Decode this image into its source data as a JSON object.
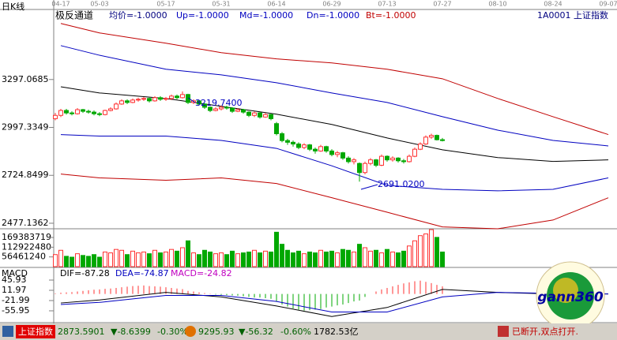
{
  "period_label": "日K线",
  "indicator_name": "极反通道",
  "indicator_labels": [
    {
      "text": "均价=-1.0000",
      "color": "#00007f"
    },
    {
      "text": "Up=-1.0000",
      "color": "#0000c0"
    },
    {
      "text": "Md=-1.0000",
      "color": "#0000c0"
    },
    {
      "text": "Dn=-1.0000",
      "color": "#0000c0"
    },
    {
      "text": "Bt=-1.0000",
      "color": "#c00000"
    }
  ],
  "symbol": "1A0001 上证指数",
  "annotations": [
    "3219.7400",
    "2691.0200"
  ],
  "logo": "gann360",
  "status_bar": {
    "index_name": "上证指数",
    "price": "2873.5901",
    "change": "▼-8.6399",
    "change_pct": "-0.30%",
    "index2": "9295.93",
    "change2": "▼-56.32",
    "change2_pct": "-0.60%",
    "turnover": "1782.53亿",
    "connection": "已断开,双点打开."
  },
  "chart_data": [
    {
      "type": "candlestick",
      "up_color": "#ff3232",
      "down_color": "#00a800",
      "log": true,
      "ylim": [
        2450,
        3790
      ],
      "yticks": [
        2477.1362,
        2724.8499,
        2997.3349,
        3297.0685
      ],
      "xticks": [
        {
          "value": 1,
          "label": "04-17"
        },
        {
          "value": 8,
          "label": "05-03"
        },
        {
          "value": 20,
          "label": "05-17"
        },
        {
          "value": 30,
          "label": "05-31"
        },
        {
          "value": 40,
          "label": "06-14"
        },
        {
          "value": 50,
          "label": "06-29"
        },
        {
          "value": 60,
          "label": "07-13"
        },
        {
          "value": 70,
          "label": "07-27"
        },
        {
          "value": 80,
          "label": "08-10"
        },
        {
          "value": 90,
          "label": "08-24"
        },
        {
          "value": 100,
          "label": "09-07"
        }
      ],
      "open": [
        3050,
        3070,
        3100,
        3085,
        3080,
        3105,
        3095,
        3090,
        3080,
        3075,
        3100,
        3110,
        3140,
        3160,
        3150,
        3165,
        3170,
        3175,
        3160,
        3180,
        3170,
        3175,
        3190,
        3180,
        3200,
        3150,
        3160,
        3140,
        3120,
        3100,
        3110,
        3120,
        3115,
        3095,
        3105,
        3090,
        3070,
        3085,
        3060,
        3075,
        3020,
        2960,
        2920,
        2910,
        2900,
        2880,
        2895,
        2870,
        2860,
        2885,
        2860,
        2840,
        2850,
        2820,
        2800,
        2790,
        2740,
        2790,
        2810,
        2780,
        2830,
        2810,
        2820,
        2805,
        2800,
        2830,
        2870,
        2900,
        2940,
        2950,
        2925
      ],
      "high": [
        3085,
        3110,
        3110,
        3095,
        3115,
        3110,
        3105,
        3100,
        3090,
        3105,
        3120,
        3150,
        3170,
        3170,
        3175,
        3180,
        3185,
        3180,
        3190,
        3190,
        3185,
        3200,
        3200,
        3219.74,
        3205,
        3170,
        3165,
        3145,
        3125,
        3120,
        3130,
        3130,
        3120,
        3115,
        3110,
        3095,
        3095,
        3090,
        3085,
        3080,
        3030,
        2970,
        2930,
        2920,
        2910,
        2905,
        2900,
        2880,
        2895,
        2890,
        2870,
        2860,
        2855,
        2830,
        2820,
        2795,
        2800,
        2820,
        2815,
        2840,
        2835,
        2830,
        2825,
        2815,
        2840,
        2880,
        2910,
        2950,
        2960,
        2955,
        2935
      ],
      "low": [
        3040,
        3060,
        3075,
        3070,
        3075,
        3085,
        3080,
        3070,
        3065,
        3070,
        3095,
        3105,
        3135,
        3140,
        3145,
        3155,
        3160,
        3150,
        3155,
        3160,
        3160,
        3165,
        3170,
        3175,
        3140,
        3140,
        3130,
        3110,
        3090,
        3095,
        3100,
        3105,
        3085,
        3090,
        3080,
        3060,
        3060,
        3050,
        3055,
        3040,
        2950,
        2910,
        2895,
        2885,
        2870,
        2870,
        2860,
        2845,
        2855,
        2850,
        2830,
        2825,
        2810,
        2790,
        2785,
        2691.02,
        2730,
        2780,
        2770,
        2775,
        2800,
        2800,
        2795,
        2790,
        2795,
        2825,
        2865,
        2895,
        2930,
        2920,
        2915
      ],
      "close": [
        3070,
        3100,
        3085,
        3080,
        3105,
        3095,
        3090,
        3080,
        3075,
        3100,
        3110,
        3140,
        3160,
        3150,
        3165,
        3170,
        3175,
        3160,
        3180,
        3170,
        3175,
        3190,
        3180,
        3200,
        3150,
        3160,
        3140,
        3120,
        3100,
        3110,
        3120,
        3115,
        3095,
        3105,
        3090,
        3070,
        3085,
        3060,
        3075,
        3050,
        2960,
        2920,
        2910,
        2900,
        2880,
        2895,
        2870,
        2860,
        2885,
        2860,
        2840,
        2850,
        2820,
        2800,
        2810,
        2740,
        2790,
        2810,
        2780,
        2830,
        2810,
        2820,
        2805,
        2800,
        2830,
        2870,
        2900,
        2940,
        2950,
        2925,
        2920
      ],
      "lines": [
        {
          "color": "#c00000",
          "values": [
            3686,
            3617,
            3544,
            3478,
            3435,
            3408,
            3365,
            3302,
            3175,
            3062,
            2955
          ]
        },
        {
          "color": "#0000c0",
          "values": [
            3527,
            3460,
            3365,
            3328,
            3276,
            3210,
            3150,
            3062,
            2981,
            2921,
            2889
          ]
        },
        {
          "color": "#000000",
          "values": [
            3250,
            3210,
            3175,
            3126,
            3077,
            3015,
            2935,
            2867,
            2823,
            2801,
            2810
          ]
        },
        {
          "color": "#0000c0",
          "values": [
            2955,
            2946,
            2946,
            2921,
            2875,
            2777,
            2671,
            2650,
            2642,
            2650,
            2711
          ]
        },
        {
          "color": "#c00000",
          "values": [
            2732,
            2711,
            2698,
            2711,
            2681,
            2606,
            2532,
            2459,
            2450,
            2493,
            2606
          ]
        }
      ]
    },
    {
      "type": "volume",
      "ylim": [
        0,
        220000000
      ],
      "yticks": [
        56461240,
        112922480,
        169383719
      ],
      "values": [
        70000000,
        95000000,
        60000000,
        55000000,
        75000000,
        65000000,
        60000000,
        70000000,
        55000000,
        85000000,
        80000000,
        100000000,
        95000000,
        70000000,
        90000000,
        80000000,
        85000000,
        75000000,
        95000000,
        80000000,
        85000000,
        100000000,
        90000000,
        110000000,
        150000000,
        80000000,
        70000000,
        95000000,
        85000000,
        75000000,
        80000000,
        70000000,
        90000000,
        75000000,
        80000000,
        85000000,
        95000000,
        80000000,
        90000000,
        85000000,
        200000000,
        130000000,
        95000000,
        80000000,
        90000000,
        75000000,
        85000000,
        80000000,
        95000000,
        85000000,
        90000000,
        80000000,
        100000000,
        95000000,
        85000000,
        130000000,
        110000000,
        90000000,
        95000000,
        80000000,
        100000000,
        85000000,
        80000000,
        90000000,
        120000000,
        150000000,
        180000000,
        190000000,
        215000000,
        170000000,
        85000000
      ]
    },
    {
      "type": "macd",
      "label": "MACD",
      "readouts": [
        "DIF=-87.28",
        "DEA=-74.87",
        "MACD=-24.82"
      ],
      "up_color": "#ff3232",
      "down_color": "#00a800",
      "ylim": [
        -92.6,
        80
      ],
      "yticks": [
        -55.95,
        -21.99,
        11.97,
        45.93
      ],
      "histogram": [
        2,
        4,
        5,
        6,
        8,
        10,
        12,
        14,
        15,
        17,
        18,
        20,
        22,
        24,
        26,
        27,
        28,
        26,
        25,
        24,
        22,
        20,
        18,
        16,
        10,
        8,
        5,
        3,
        1,
        -2,
        -3,
        -4,
        -5,
        -6,
        -8,
        -10,
        -12,
        -12,
        -14,
        -16,
        -25,
        -35,
        -42,
        -48,
        -52,
        -55,
        -54,
        -52,
        -50,
        -45,
        -42,
        -38,
        -35,
        -30,
        -25,
        -22,
        -10,
        0,
        8,
        15,
        20,
        25,
        30,
        35,
        38,
        42,
        44,
        40,
        36,
        30,
        25
      ],
      "lines": [
        {
          "color": "#000000",
          "values": [
            -30,
            -20,
            5,
            -10,
            -40,
            -75,
            -45,
            15,
            5,
            0,
            0
          ]
        },
        {
          "color": "#0000c0",
          "values": [
            -35,
            -28,
            -5,
            -5,
            -25,
            -60,
            -60,
            -10,
            5,
            2,
            0
          ]
        }
      ]
    }
  ]
}
